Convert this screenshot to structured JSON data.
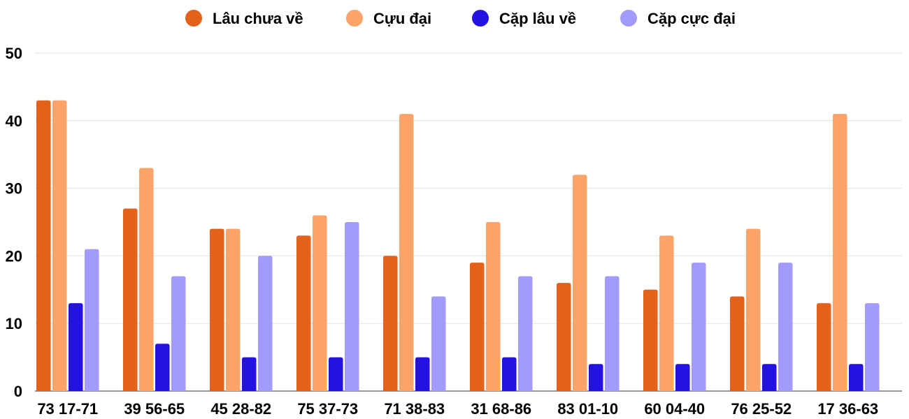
{
  "chart_data": {
    "type": "bar",
    "title": "",
    "xlabel": "",
    "ylabel": "",
    "ylim": [
      0,
      50
    ],
    "yticks": [
      0,
      10,
      20,
      30,
      40,
      50
    ],
    "grid": true,
    "legend_position": "top-center",
    "categories": [
      "73 17-71",
      "39 56-65",
      "45 28-82",
      "75 37-73",
      "71 38-83",
      "31 68-86",
      "83 01-10",
      "60 04-40",
      "76 25-52",
      "17 36-63"
    ],
    "series": [
      {
        "name": "Lâu chưa về",
        "color": "#e2621b",
        "values": [
          43,
          27,
          24,
          23,
          20,
          19,
          16,
          15,
          14,
          13
        ]
      },
      {
        "name": "Cựu đại",
        "color": "#fba368",
        "values": [
          43,
          33,
          24,
          26,
          41,
          25,
          32,
          23,
          24,
          41
        ]
      },
      {
        "name": "Cặp lâu về",
        "color": "#2412e3",
        "values": [
          13,
          7,
          5,
          5,
          5,
          5,
          4,
          4,
          4,
          4
        ]
      },
      {
        "name": "Cặp cực đại",
        "color": "#a29bfc",
        "values": [
          21,
          17,
          20,
          25,
          14,
          17,
          17,
          19,
          19,
          13
        ]
      }
    ]
  }
}
